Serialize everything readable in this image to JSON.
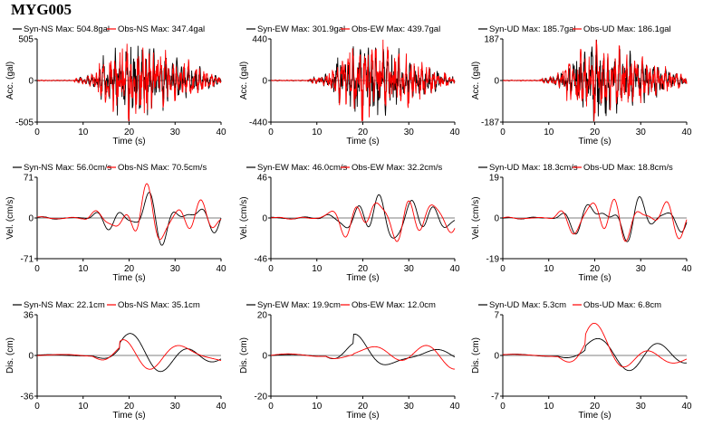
{
  "title": "MYG005",
  "colors": {
    "syn": "#000000",
    "obs": "#ff0000"
  },
  "chart_data": [
    {
      "type": "line",
      "row": "acc",
      "component": "NS",
      "xlabel": "Time (s)",
      "ylabel": "Acc. (gal)",
      "xlim": [
        0,
        40
      ],
      "ylim": [
        -505,
        505
      ],
      "xticks": [
        "0",
        "10",
        "20",
        "30",
        "40"
      ],
      "yticks": [
        {
          "v": 505,
          "t": "505"
        },
        {
          "v": 0,
          "t": "0"
        },
        {
          "v": -505,
          "t": "-505"
        }
      ],
      "series": [
        {
          "name": "Syn-NS",
          "max_label": "Max: 504.8gal"
        },
        {
          "name": "Obs-NS",
          "max_label": "Max: 347.4gal"
        }
      ]
    },
    {
      "type": "line",
      "row": "acc",
      "component": "EW",
      "xlabel": "Time (s)",
      "ylabel": "Acc. (gal)",
      "xlim": [
        0,
        40
      ],
      "ylim": [
        -440,
        440
      ],
      "xticks": [
        "0",
        "10",
        "20",
        "30",
        "40"
      ],
      "yticks": [
        {
          "v": 440,
          "t": "440"
        },
        {
          "v": 0,
          "t": "0"
        },
        {
          "v": -440,
          "t": "-440"
        }
      ],
      "series": [
        {
          "name": "Syn-EW",
          "max_label": "Max: 301.9gal"
        },
        {
          "name": "Obs-EW",
          "max_label": "Max: 439.7gal"
        }
      ]
    },
    {
      "type": "line",
      "row": "acc",
      "component": "UD",
      "xlabel": "Time (s)",
      "ylabel": "Acc. (gal)",
      "xlim": [
        0,
        40
      ],
      "ylim": [
        -187,
        187
      ],
      "xticks": [
        "0",
        "10",
        "20",
        "30",
        "40"
      ],
      "yticks": [
        {
          "v": 187,
          "t": "187"
        },
        {
          "v": 0,
          "t": "0"
        },
        {
          "v": -187,
          "t": "-187"
        }
      ],
      "series": [
        {
          "name": "Syn-UD",
          "max_label": "Max: 185.7gal"
        },
        {
          "name": "Obs-UD",
          "max_label": "Max: 186.1gal"
        }
      ]
    },
    {
      "type": "line",
      "row": "vel",
      "component": "NS",
      "xlabel": "Time (s)",
      "ylabel": "Vel. (cm/s)",
      "xlim": [
        0,
        40
      ],
      "ylim": [
        -71,
        71
      ],
      "xticks": [
        "0",
        "10",
        "20",
        "30",
        "40"
      ],
      "yticks": [
        {
          "v": 71,
          "t": "71"
        },
        {
          "v": 0,
          "t": "0"
        },
        {
          "v": -71,
          "t": "-71"
        }
      ],
      "series": [
        {
          "name": "Syn-NS",
          "max_label": "Max: 56.0cm/s"
        },
        {
          "name": "Obs-NS",
          "max_label": "Max: 70.5cm/s"
        }
      ]
    },
    {
      "type": "line",
      "row": "vel",
      "component": "EW",
      "xlabel": "Time (s)",
      "ylabel": "Vel. (cm/s)",
      "xlim": [
        0,
        40
      ],
      "ylim": [
        -46,
        46
      ],
      "xticks": [
        "0",
        "10",
        "20",
        "30",
        "40"
      ],
      "yticks": [
        {
          "v": 46,
          "t": "46"
        },
        {
          "v": 0,
          "t": "0"
        },
        {
          "v": -46,
          "t": "-46"
        }
      ],
      "series": [
        {
          "name": "Syn-EW",
          "max_label": "Max: 46.0cm/s"
        },
        {
          "name": "Obs-EW",
          "max_label": "Max: 32.2cm/s"
        }
      ]
    },
    {
      "type": "line",
      "row": "vel",
      "component": "UD",
      "xlabel": "Time (s)",
      "ylabel": "Vel. (cm/s)",
      "xlim": [
        0,
        40
      ],
      "ylim": [
        -19,
        19
      ],
      "xticks": [
        "0",
        "10",
        "20",
        "30",
        "40"
      ],
      "yticks": [
        {
          "v": 19,
          "t": "19"
        },
        {
          "v": 0,
          "t": "0"
        },
        {
          "v": -19,
          "t": "-19"
        }
      ],
      "series": [
        {
          "name": "Syn-UD",
          "max_label": "Max: 18.3cm/s"
        },
        {
          "name": "Obs-UD",
          "max_label": "Max: 18.8cm/s"
        }
      ]
    },
    {
      "type": "line",
      "row": "dis",
      "component": "NS",
      "xlabel": "Time (s)",
      "ylabel": "Dis. (cm)",
      "xlim": [
        0,
        40
      ],
      "ylim": [
        -36,
        36
      ],
      "xticks": [
        "0",
        "10",
        "20",
        "30",
        "40"
      ],
      "yticks": [
        {
          "v": 36,
          "t": "36"
        },
        {
          "v": 0,
          "t": "0"
        },
        {
          "v": -36,
          "t": "-36"
        }
      ],
      "series": [
        {
          "name": "Syn-NS",
          "max_label": "Max: 22.1cm"
        },
        {
          "name": "Obs-NS",
          "max_label": "Max: 35.1cm"
        }
      ]
    },
    {
      "type": "line",
      "row": "dis",
      "component": "EW",
      "xlabel": "Time (s)",
      "ylabel": "Dis. (cm)",
      "xlim": [
        0,
        40
      ],
      "ylim": [
        -20,
        20
      ],
      "xticks": [
        "0",
        "10",
        "20",
        "30",
        "40"
      ],
      "yticks": [
        {
          "v": 20,
          "t": "20"
        },
        {
          "v": 0,
          "t": "0"
        },
        {
          "v": -20,
          "t": "-20"
        }
      ],
      "series": [
        {
          "name": "Syn-EW",
          "max_label": "Max: 19.9cm"
        },
        {
          "name": "Obs-EW",
          "max_label": "Max: 12.0cm"
        }
      ]
    },
    {
      "type": "line",
      "row": "dis",
      "component": "UD",
      "xlabel": "Time (s)",
      "ylabel": "Dis. (cm)",
      "xlim": [
        0,
        40
      ],
      "ylim": [
        -7,
        7
      ],
      "xticks": [
        "0",
        "10",
        "20",
        "30",
        "40"
      ],
      "yticks": [
        {
          "v": 7,
          "t": "7"
        },
        {
          "v": 0,
          "t": "0"
        },
        {
          "v": -7,
          "t": "-7"
        }
      ],
      "series": [
        {
          "name": "Syn-UD",
          "max_label": "Max: 5.3cm"
        },
        {
          "name": "Obs-UD",
          "max_label": "Max: 6.8cm"
        }
      ]
    }
  ]
}
